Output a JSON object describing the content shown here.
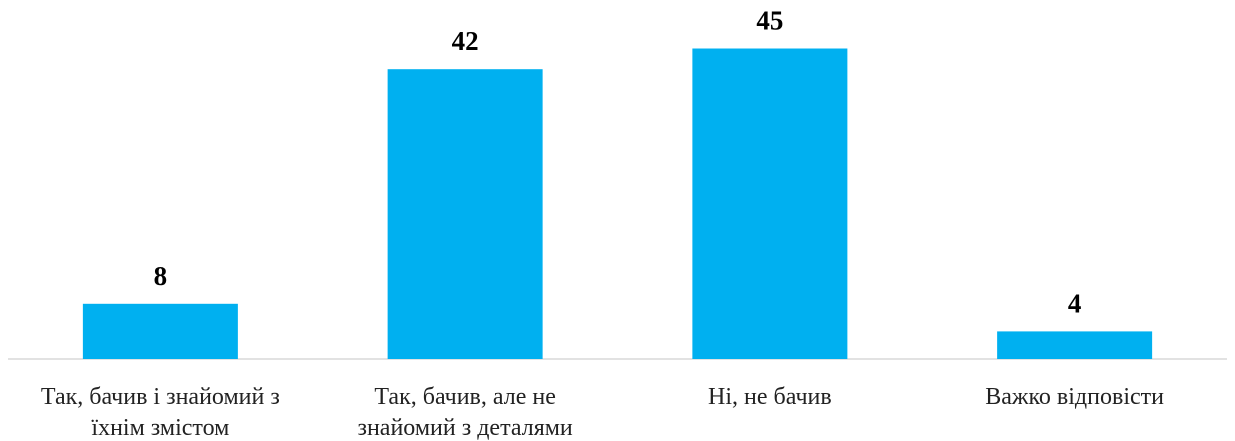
{
  "chart_data": {
    "type": "bar",
    "categories": [
      [
        "Так, бачив і знайомий з",
        "їхнім змістом"
      ],
      [
        "Так, бачив, але не",
        "знайомий з деталями"
      ],
      [
        "Ні, не бачив"
      ],
      [
        "Важко відповісти"
      ]
    ],
    "values": [
      8,
      42,
      45,
      4
    ],
    "title": "",
    "xlabel": "",
    "ylabel": "",
    "ylim": [
      0,
      50
    ],
    "grid": false,
    "legend": "none",
    "bar_color": "#00B0F0",
    "axis_color": "#D9D9D9"
  }
}
